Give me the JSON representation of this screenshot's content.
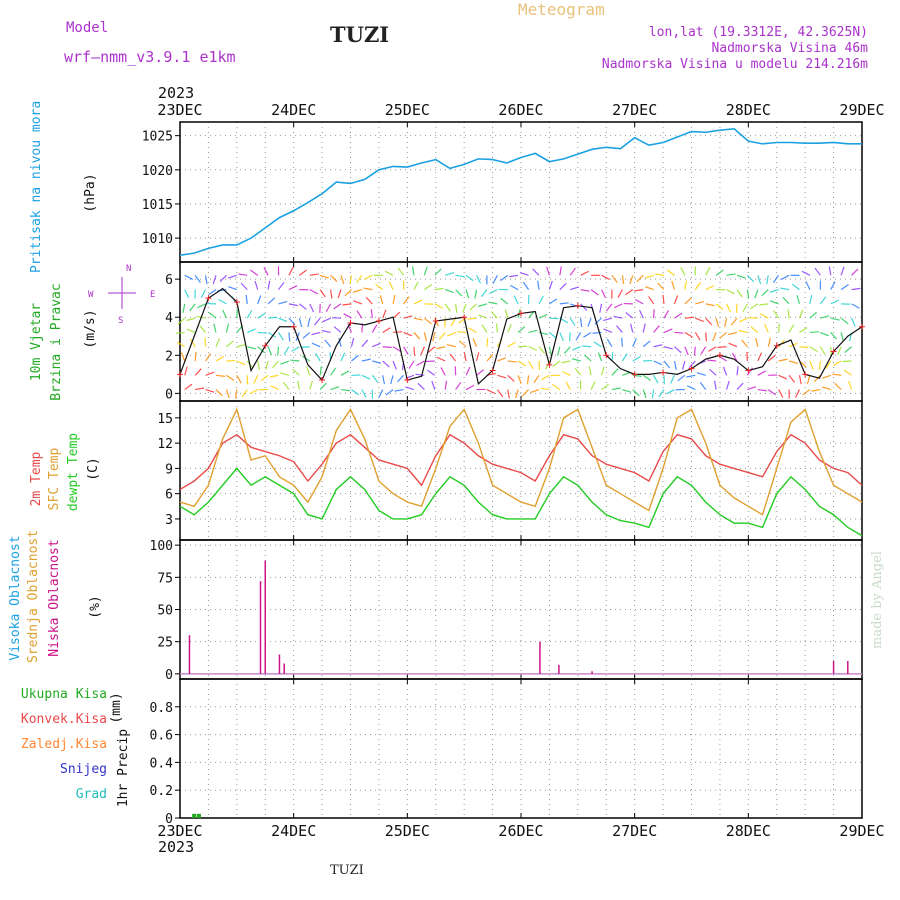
{
  "header": {
    "model_label": "Model",
    "model_name": "wrf—nmm_v3.9.1  e1km",
    "station": "TUZI",
    "product": "Meteogram",
    "lonlat": "lon,lat (19.3312E, 42.3625N)",
    "altitude": "Nadmorska Visina 46m",
    "model_altitude": "Nadmorska Visina u modelu 214.216m",
    "year_top": "2023",
    "year_bottom": "2023",
    "station_footer": "TUZI",
    "credit": "made by Angel"
  },
  "colors": {
    "pressure": "#1ba1e2",
    "temp2m": "#e84a4a",
    "sfc_temp": "#e0a030",
    "dewpoint": "#22cc22",
    "cloud_high": "#1ba1e2",
    "cloud_mid": "#e0a030",
    "cloud_low": "#cc1188",
    "precip_total": "#22aa22",
    "precip_conv": "#e84a4a",
    "precip_frozen": "#ff8833",
    "precip_snow": "#3333cc",
    "precip_hail": "#22bbbb",
    "wind_label": "#22aa22",
    "compass": "#aa33cc"
  },
  "chart_data": [
    {
      "type": "line",
      "panel": "pressure",
      "ylabel_series": "Pritisak na nivou mora",
      "ylabel_unit": "(hPa)",
      "x_ticks": [
        "23DEC",
        "24DEC",
        "25DEC",
        "26DEC",
        "27DEC",
        "28DEC",
        "29DEC"
      ],
      "xlim": [
        0,
        144
      ],
      "ylim": [
        1006.5,
        1027.0
      ],
      "y_ticks": [
        1010,
        1015,
        1020,
        1025
      ],
      "grid": true,
      "x": [
        0,
        3,
        6,
        9,
        12,
        15,
        18,
        21,
        24,
        27,
        30,
        33,
        36,
        39,
        42,
        45,
        48,
        51,
        54,
        57,
        60,
        63,
        66,
        69,
        72,
        75,
        78,
        81,
        84,
        87,
        90,
        93,
        96,
        99,
        102,
        105,
        108,
        111,
        114,
        117,
        120,
        123,
        126,
        129,
        132,
        135,
        138,
        141,
        144
      ],
      "values": [
        1007.5,
        1007.8,
        1008.5,
        1009.0,
        1009.0,
        1010.0,
        1011.5,
        1013.0,
        1014.0,
        1015.2,
        1016.5,
        1018.2,
        1018.0,
        1018.6,
        1020.0,
        1020.5,
        1020.4,
        1021.0,
        1021.5,
        1020.2,
        1020.8,
        1021.6,
        1021.5,
        1021.0,
        1021.8,
        1022.4,
        1021.2,
        1021.6,
        1022.3,
        1023.0,
        1023.3,
        1023.1,
        1024.7,
        1023.6,
        1024.0,
        1024.8,
        1025.6,
        1025.5,
        1025.8,
        1026.0,
        1024.2,
        1023.8,
        1024.0,
        1024.0,
        1023.9,
        1023.9,
        1024.0,
        1023.8,
        1023.8
      ]
    },
    {
      "type": "line",
      "panel": "wind",
      "ylabel_series": "10m Vjetar",
      "ylabel_series2": "Brzina i Pravac",
      "ylabel_unit": "(m/s)",
      "compass": {
        "n": "N",
        "w": "W",
        "e": "E",
        "s": "S"
      },
      "xlim": [
        0,
        144
      ],
      "ylim": [
        -0.4,
        6.9
      ],
      "y_ticks": [
        0,
        2,
        4,
        6
      ],
      "grid": true,
      "x": [
        0,
        3,
        6,
        9,
        12,
        15,
        18,
        21,
        24,
        27,
        30,
        33,
        36,
        39,
        42,
        45,
        48,
        51,
        54,
        57,
        60,
        63,
        66,
        69,
        72,
        75,
        78,
        81,
        84,
        87,
        90,
        93,
        96,
        99,
        102,
        105,
        108,
        111,
        114,
        117,
        120,
        123,
        126,
        129,
        132,
        135,
        138,
        141,
        144
      ],
      "values": [
        1.0,
        3.0,
        5.0,
        5.5,
        4.8,
        1.2,
        2.5,
        3.5,
        3.5,
        1.5,
        0.7,
        2.5,
        3.7,
        3.6,
        3.8,
        4.0,
        0.7,
        0.9,
        3.8,
        3.9,
        4.0,
        0.5,
        1.2,
        3.9,
        4.2,
        4.3,
        1.5,
        4.5,
        4.6,
        4.5,
        2.0,
        1.3,
        1.0,
        1.0,
        1.1,
        1.0,
        1.3,
        1.8,
        2.0,
        1.8,
        1.2,
        1.4,
        2.5,
        2.8,
        1.0,
        0.8,
        2.2,
        3.0,
        3.5
      ]
    },
    {
      "type": "line",
      "panel": "temperature",
      "ylabel_series": "2m Temp",
      "ylabel_series2": "SFC Temp",
      "ylabel_series3": "dewpt Temp",
      "ylabel_unit": "(C)",
      "xlim": [
        0,
        144
      ],
      "ylim": [
        0.5,
        17.0
      ],
      "y_ticks": [
        3,
        6,
        9,
        12,
        15
      ],
      "grid": true,
      "x": [
        0,
        3,
        6,
        9,
        12,
        15,
        18,
        21,
        24,
        27,
        30,
        33,
        36,
        39,
        42,
        45,
        48,
        51,
        54,
        57,
        60,
        63,
        66,
        69,
        72,
        75,
        78,
        81,
        84,
        87,
        90,
        93,
        96,
        99,
        102,
        105,
        108,
        111,
        114,
        117,
        120,
        123,
        126,
        129,
        132,
        135,
        138,
        141,
        144
      ],
      "series": [
        {
          "name": "2m Temp",
          "values": [
            6.5,
            7.5,
            9.0,
            12.0,
            13.0,
            11.5,
            11.0,
            10.5,
            9.8,
            7.5,
            9.5,
            12.0,
            13.0,
            11.5,
            10.0,
            9.5,
            9.0,
            7.0,
            10.5,
            13.0,
            12.0,
            10.5,
            9.5,
            9.0,
            8.5,
            7.5,
            10.5,
            13.0,
            12.5,
            10.5,
            9.5,
            9.0,
            8.5,
            7.5,
            11.0,
            13.0,
            12.5,
            10.5,
            9.5,
            9.0,
            8.5,
            8.0,
            11.0,
            13.0,
            12.0,
            10.0,
            9.0,
            8.5,
            7.0
          ]
        },
        {
          "name": "SFC Temp",
          "values": [
            5.0,
            4.5,
            7.0,
            12.5,
            16.0,
            10.0,
            10.5,
            8.0,
            7.0,
            5.0,
            8.0,
            13.5,
            16.0,
            12.5,
            7.5,
            6.0,
            5.0,
            4.5,
            9.0,
            14.0,
            16.0,
            12.0,
            7.0,
            6.0,
            5.0,
            4.5,
            9.0,
            15.0,
            16.0,
            11.5,
            7.0,
            6.0,
            5.0,
            4.0,
            9.0,
            15.0,
            16.0,
            12.0,
            7.0,
            5.5,
            4.5,
            3.5,
            9.0,
            14.5,
            16.0,
            11.0,
            7.0,
            6.0,
            5.0
          ]
        },
        {
          "name": "dewpt Temp",
          "values": [
            4.5,
            3.5,
            5.0,
            7.0,
            9.0,
            7.0,
            8.0,
            7.0,
            6.0,
            3.5,
            3.0,
            6.5,
            8.0,
            6.5,
            4.0,
            3.0,
            3.0,
            3.5,
            6.0,
            8.0,
            7.0,
            5.0,
            3.5,
            3.0,
            3.0,
            3.0,
            6.0,
            8.0,
            7.0,
            5.0,
            3.5,
            2.8,
            2.5,
            2.0,
            6.0,
            8.0,
            7.0,
            5.0,
            3.5,
            2.5,
            2.5,
            2.0,
            6.0,
            8.0,
            6.5,
            4.5,
            3.5,
            2.0,
            1.0
          ]
        }
      ]
    },
    {
      "type": "bar",
      "panel": "cloud",
      "ylabel_series": "Visoka Oblacnost",
      "ylabel_series2": "Srednja Oblacnost",
      "ylabel_series3": "Niska Oblacnost",
      "ylabel_unit": "(%)",
      "xlim": [
        0,
        144
      ],
      "ylim": [
        -4,
        104
      ],
      "y_ticks": [
        0,
        25,
        50,
        75,
        100
      ],
      "grid": true,
      "series": [
        {
          "name": "Niska Oblacnost",
          "x": [
            2,
            17,
            18,
            21,
            22,
            76,
            80,
            87,
            138,
            141
          ],
          "values": [
            30,
            72,
            88,
            15,
            8,
            25,
            7,
            2,
            10,
            10
          ]
        }
      ]
    },
    {
      "type": "bar",
      "panel": "precip",
      "ylabel_series": "1hr Precip",
      "ylabel_unit": "(mm)",
      "legend": [
        "Ukupna Kisa",
        "Konvek.Kisa",
        "Zaledj.Kisa",
        "Snijeg",
        "Grad"
      ],
      "xlim": [
        0,
        144
      ],
      "ylim": [
        0,
        1.0
      ],
      "y_ticks": [
        0,
        0.2,
        0.4,
        0.6,
        0.8
      ],
      "grid": true,
      "series": [
        {
          "name": "Ukupna Kisa",
          "x": [
            3,
            4
          ],
          "values": [
            0.03,
            0.03
          ]
        }
      ]
    }
  ]
}
